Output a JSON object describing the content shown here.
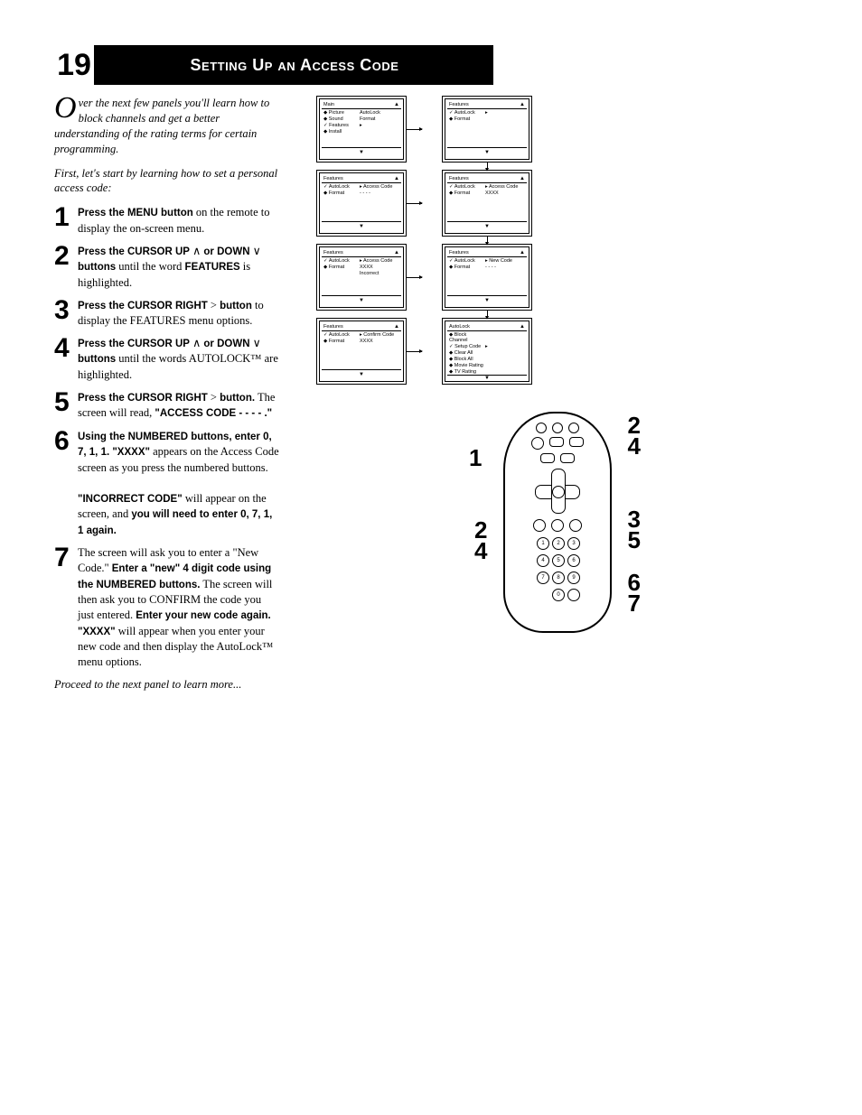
{
  "page_number": "19",
  "title": "Setting Up an Access Code",
  "intro": "ver the next few panels you'll learn how to block channels and get a better understanding of the rating terms for certain programming.",
  "intro_dropcap": "O",
  "intro2": "First, let's start by learning how to set a personal access code:",
  "steps": [
    {
      "n": "1",
      "html": "<b>Press the MENU button</b> on the remote to display the on-screen menu."
    },
    {
      "n": "2",
      "html": "<b>Press the CURSOR UP</b> ∧ <b>or DOWN</b> ∨ <b>buttons</b> until the word <b>FEATURES</b> is highlighted."
    },
    {
      "n": "3",
      "html": "<b>Press the CURSOR RIGHT</b> &gt; <b>button</b> to display the FEATURES menu options."
    },
    {
      "n": "4",
      "html": "<b>Press the CURSOR UP</b> ∧ <b>or DOWN</b> ∨ <b>buttons</b> until the words AUTOLOCK™ are highlighted."
    },
    {
      "n": "5",
      "html": "<b>Press the CURSOR RIGHT</b> &gt; <b>button.</b> The screen will read, <b>\"ACCESS CODE - - - - .\"</b>"
    },
    {
      "n": "6",
      "html": "<b>Using the NUMBERED buttons, enter 0, 7, 1, 1. \"XXXX\"</b> appears on the Access Code screen as you press the numbered buttons.<br><br><b>\"INCORRECT CODE\"</b> will appear on the screen, and <b>you will need to enter 0, 7, 1, 1 again.</b>"
    },
    {
      "n": "7",
      "html": "The screen will ask you to enter a \"New Code.\" <b>Enter a \"new\" 4 digit code using the NUMBERED buttons.</b> The screen will then ask you to CONFIRM the code you just entered. <b>Enter your new code again. \"XXXX\"</b> will appear when you enter your new code and then display the AutoLock™ menu options."
    }
  ],
  "footer": "Proceed to the next panel to learn more...",
  "screens": [
    {
      "title": "Main",
      "rows": [
        [
          "◆ Picture",
          "AutoLock"
        ],
        [
          "◆ Sound",
          "Format"
        ],
        [
          "✓ Features",
          "▸"
        ],
        [
          "◆ Install",
          ""
        ]
      ],
      "arrowR": true
    },
    {
      "title": "Features",
      "rows": [
        [
          "✓ AutoLock",
          "▸"
        ],
        [
          "◆ Format",
          ""
        ]
      ],
      "arrowD": true
    },
    {
      "title": "Features",
      "rows": [
        [
          "✓ AutoLock",
          "▸ Access Code"
        ],
        [
          "◆ Format",
          "- - - -"
        ]
      ],
      "arrowR": true
    },
    {
      "title": "Features",
      "rows": [
        [
          "✓ AutoLock",
          "▸ Access Code"
        ],
        [
          "◆ Format",
          "XXXX"
        ]
      ],
      "arrowD": true
    },
    {
      "title": "Features",
      "rows": [
        [
          "✓ AutoLock",
          "▸ Access Code"
        ],
        [
          "◆ Format",
          "XXXX"
        ],
        [
          "",
          "Incorrect"
        ]
      ],
      "arrowR": true
    },
    {
      "title": "Features",
      "rows": [
        [
          "✓ AutoLock",
          "▸ New Code"
        ],
        [
          "◆ Format",
          "- - - -"
        ]
      ],
      "arrowD": true
    },
    {
      "title": "Features",
      "rows": [
        [
          "✓ AutoLock",
          "▸ Confirm Code"
        ],
        [
          "◆ Format",
          "XXXX"
        ]
      ],
      "arrowR": true
    },
    {
      "title": "AutoLock",
      "rows": [
        [
          "◆ Block Channel",
          ""
        ],
        [
          "✓ Setup Code",
          "▸"
        ],
        [
          "◆ Clear All",
          ""
        ],
        [
          "◆ Block All",
          ""
        ],
        [
          "◆ Movie Rating",
          ""
        ],
        [
          "◆ TV Rating",
          ""
        ]
      ]
    }
  ],
  "remote_callouts": {
    "left1": "1",
    "left24a": "2\n4",
    "right24": "2\n4",
    "right35": "3\n5",
    "right67": "6\n7"
  },
  "colors": {
    "text": "#000000",
    "bg": "#ffffff"
  }
}
